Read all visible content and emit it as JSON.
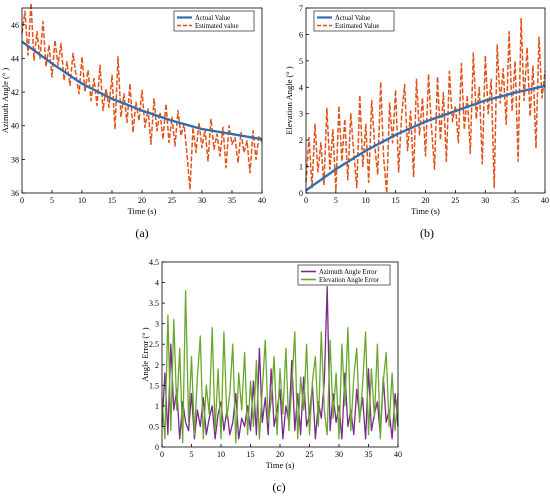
{
  "colors": {
    "actual": "#2f6fb0",
    "estimated": "#e0531b",
    "azimuth_error": "#7b2a8c",
    "elevation_error": "#6aa82d",
    "axis": "#000000"
  },
  "panel_labels": {
    "a": "(a)",
    "b": "(b)",
    "c": "(c)"
  },
  "chart_data": [
    {
      "type": "line",
      "id": "a",
      "title": "",
      "xlabel": "Time (s)",
      "ylabel": "Azimuth Angle (° )",
      "xlim": [
        0,
        40
      ],
      "ylim": [
        36,
        47
      ],
      "xticks": [
        "0",
        "5",
        "10",
        "15",
        "20",
        "25",
        "30",
        "35",
        "40"
      ],
      "yticks": [
        "36",
        "38",
        "40",
        "42",
        "44",
        "46"
      ],
      "legend": [
        "Actual Value",
        "Estimated value"
      ],
      "legend_position": "top-right",
      "grid": false,
      "series": [
        {
          "name": "Actual Value",
          "style": "solid",
          "x": [
            0,
            5,
            10,
            15,
            20,
            25,
            30,
            35,
            40
          ],
          "y": [
            45.0,
            43.7,
            42.5,
            41.6,
            40.9,
            40.3,
            39.8,
            39.5,
            39.2
          ]
        },
        {
          "name": "Estimated value",
          "style": "dashed",
          "x": [
            0,
            0.5,
            1,
            1.5,
            2,
            2.5,
            3,
            3.5,
            4,
            4.5,
            5,
            5.5,
            6,
            6.5,
            7,
            7.5,
            8,
            8.5,
            9,
            9.5,
            10,
            10.5,
            11,
            11.5,
            12,
            12.5,
            13,
            13.5,
            14,
            14.5,
            15,
            15.5,
            16,
            16.5,
            17,
            17.5,
            18,
            18.5,
            19,
            19.5,
            20,
            20.5,
            21,
            21.5,
            22,
            22.5,
            23,
            23.5,
            24,
            24.5,
            25,
            25.5,
            26,
            26.5,
            27,
            27.5,
            28,
            28.5,
            29,
            29.5,
            30,
            30.5,
            31,
            31.5,
            32,
            32.5,
            33,
            33.5,
            34,
            34.5,
            35,
            35.5,
            36,
            36.5,
            37,
            37.5,
            38,
            38.5,
            39,
            39.5,
            40
          ],
          "y": [
            45.5,
            46.8,
            44.2,
            47.3,
            43.9,
            45.6,
            44.0,
            46.2,
            43.5,
            44.8,
            42.9,
            45.1,
            43.6,
            44.9,
            42.7,
            43.8,
            42.4,
            44.3,
            43.0,
            41.9,
            44.1,
            42.0,
            43.3,
            41.5,
            42.8,
            41.2,
            43.6,
            40.9,
            42.2,
            41.1,
            43.0,
            39.8,
            44.1,
            40.5,
            41.9,
            40.2,
            42.5,
            39.6,
            41.4,
            40.3,
            42.1,
            39.9,
            41.0,
            38.9,
            41.6,
            39.7,
            40.8,
            39.2,
            41.3,
            39.0,
            40.5,
            38.8,
            40.9,
            39.4,
            40.1,
            38.3,
            36.2,
            39.9,
            38.4,
            40.2,
            38.7,
            39.8,
            37.9,
            40.4,
            38.6,
            39.5,
            38.2,
            39.9,
            37.5,
            40.0,
            38.9,
            39.3,
            37.8,
            39.6,
            38.4,
            39.1,
            37.2,
            39.7,
            38.0,
            39.4,
            39.0
          ]
        }
      ]
    },
    {
      "type": "line",
      "id": "b",
      "title": "",
      "xlabel": "Time (s)",
      "ylabel": "Elevation Angle (° )",
      "xlim": [
        0,
        40
      ],
      "ylim": [
        0,
        7
      ],
      "xticks": [
        "0",
        "5",
        "10",
        "15",
        "20",
        "25",
        "30",
        "35",
        "40"
      ],
      "yticks": [
        "0",
        "1",
        "2",
        "3",
        "4",
        "5",
        "6",
        "7"
      ],
      "legend": [
        "Actual Value",
        "Estimated Value"
      ],
      "legend_position": "top-left",
      "grid": false,
      "series": [
        {
          "name": "Actual Value",
          "style": "solid",
          "x": [
            0,
            5,
            10,
            15,
            20,
            25,
            30,
            35,
            40
          ],
          "y": [
            0.1,
            0.9,
            1.6,
            2.2,
            2.7,
            3.1,
            3.5,
            3.8,
            4.05
          ]
        },
        {
          "name": "Estimated Value",
          "style": "dashed",
          "x": [
            0,
            0.5,
            1,
            1.5,
            2,
            2.5,
            3,
            3.5,
            4,
            4.5,
            5,
            5.5,
            6,
            6.5,
            7,
            7.5,
            8,
            8.5,
            9,
            9.5,
            10,
            10.5,
            11,
            11.5,
            12,
            12.5,
            13,
            13.5,
            14,
            14.5,
            15,
            15.5,
            16,
            16.5,
            17,
            17.5,
            18,
            18.5,
            19,
            19.5,
            20,
            20.5,
            21,
            21.5,
            22,
            22.5,
            23,
            23.5,
            24,
            24.5,
            25,
            25.5,
            26,
            26.5,
            27,
            27.5,
            28,
            28.5,
            29,
            29.5,
            30,
            30.5,
            31,
            31.5,
            32,
            32.5,
            33,
            33.5,
            34,
            34.5,
            35,
            35.5,
            36,
            36.5,
            37,
            37.5,
            38,
            38.5,
            39,
            39.5,
            40
          ],
          "y": [
            0.4,
            2.1,
            0.2,
            2.6,
            0.8,
            1.9,
            0.3,
            3.2,
            0.9,
            2.4,
            0.1,
            3.3,
            1.2,
            2.8,
            0.5,
            3.0,
            1.5,
            0.2,
            3.7,
            1.0,
            2.6,
            0.4,
            3.5,
            1.8,
            0.7,
            4.2,
            1.3,
            0.0,
            3.4,
            1.9,
            3.9,
            0.8,
            2.9,
            4.1,
            1.6,
            3.1,
            0.6,
            4.3,
            2.2,
            3.6,
            1.4,
            4.5,
            2.5,
            0.9,
            4.4,
            2.0,
            3.8,
            1.2,
            4.6,
            2.7,
            3.3,
            1.9,
            4.9,
            2.4,
            3.7,
            1.5,
            5.3,
            2.8,
            4.0,
            1.1,
            5.2,
            3.0,
            4.3,
            0.2,
            5.6,
            3.4,
            4.7,
            2.6,
            6.1,
            3.1,
            5.0,
            1.2,
            6.6,
            3.5,
            5.5,
            2.9,
            4.8,
            1.7,
            5.9,
            3.6,
            4.6
          ]
        }
      ]
    },
    {
      "type": "line",
      "id": "c",
      "title": "",
      "xlabel": "Time (s)",
      "ylabel": "Angle Error (° )",
      "xlim": [
        0,
        40
      ],
      "ylim": [
        0,
        4.5
      ],
      "xticks": [
        "0",
        "5",
        "10",
        "15",
        "20",
        "25",
        "30",
        "35",
        "40"
      ],
      "yticks": [
        "0",
        "0.5",
        "1",
        "1.5",
        "2",
        "2.5",
        "3",
        "3.5",
        "4",
        "4.5"
      ],
      "legend": [
        "Azimuth Angle Error",
        "Elevation Angle Error"
      ],
      "legend_position": "top-right",
      "grid": false,
      "series": [
        {
          "name": "Azimuth Angle Error",
          "style": "solid",
          "x": [
            0,
            0.5,
            1,
            1.5,
            2,
            2.5,
            3,
            3.5,
            4,
            4.5,
            5,
            5.5,
            6,
            6.5,
            7,
            7.5,
            8,
            8.5,
            9,
            9.5,
            10,
            10.5,
            11,
            11.5,
            12,
            12.5,
            13,
            13.5,
            14,
            14.5,
            15,
            15.5,
            16,
            16.5,
            17,
            17.5,
            18,
            18.5,
            19,
            19.5,
            20,
            20.5,
            21,
            21.5,
            22,
            22.5,
            23,
            23.5,
            24,
            24.5,
            25,
            25.5,
            26,
            26.5,
            27,
            27.5,
            28,
            28.5,
            29,
            29.5,
            30,
            30.5,
            31,
            31.5,
            32,
            32.5,
            33,
            33.5,
            34,
            34.5,
            35,
            35.5,
            36,
            36.5,
            37,
            37.5,
            38,
            38.5,
            39,
            39.5,
            40
          ],
          "y": [
            0.5,
            1.8,
            0.3,
            2.5,
            0.9,
            1.4,
            0.2,
            1.1,
            0.6,
            0.4,
            1.3,
            0.2,
            0.9,
            0.5,
            1.2,
            0.3,
            0.7,
            1.0,
            0.2,
            0.8,
            1.1,
            0.4,
            0.9,
            0.3,
            0.6,
            1.3,
            0.2,
            0.7,
            0.5,
            1.0,
            0.4,
            1.6,
            0.3,
            2.4,
            0.6,
            1.2,
            0.3,
            1.9,
            0.5,
            0.9,
            1.4,
            0.2,
            1.0,
            0.6,
            2.1,
            0.4,
            1.3,
            0.3,
            1.7,
            0.5,
            0.8,
            1.5,
            0.2,
            1.1,
            0.7,
            1.6,
            3.9,
            0.4,
            1.3,
            0.6,
            1.0,
            0.2,
            1.8,
            0.5,
            0.9,
            0.3,
            1.4,
            0.7,
            1.2,
            0.2,
            1.9,
            0.4,
            0.8,
            1.1,
            0.3,
            1.7,
            0.6,
            0.9,
            0.2,
            1.3,
            0.5
          ]
        },
        {
          "name": "Elevation Angle Error",
          "style": "solid",
          "x": [
            0,
            0.5,
            1,
            1.5,
            2,
            2.5,
            3,
            3.5,
            4,
            4.5,
            5,
            5.5,
            6,
            6.5,
            7,
            7.5,
            8,
            8.5,
            9,
            9.5,
            10,
            10.5,
            11,
            11.5,
            12,
            12.5,
            13,
            13.5,
            14,
            14.5,
            15,
            15.5,
            16,
            16.5,
            17,
            17.5,
            18,
            18.5,
            19,
            19.5,
            20,
            20.5,
            21,
            21.5,
            22,
            22.5,
            23,
            23.5,
            24,
            24.5,
            25,
            25.5,
            26,
            26.5,
            27,
            27.5,
            28,
            28.5,
            29,
            29.5,
            30,
            30.5,
            31,
            31.5,
            32,
            32.5,
            33,
            33.5,
            34,
            34.5,
            35,
            35.5,
            36,
            36.5,
            37,
            37.5,
            38,
            38.5,
            39,
            39.5,
            40
          ],
          "y": [
            1.2,
            0.2,
            3.2,
            0.4,
            3.1,
            0.9,
            2.4,
            0.1,
            3.8,
            0.6,
            2.2,
            0.3,
            1.7,
            2.7,
            0.2,
            1.5,
            0.8,
            2.9,
            0.4,
            1.9,
            0.2,
            2.8,
            0.7,
            1.3,
            2.5,
            0.1,
            1.8,
            0.9,
            2.3,
            0.3,
            1.6,
            0.5,
            2.1,
            0.2,
            1.4,
            2.6,
            0.6,
            1.1,
            2.2,
            0.3,
            1.9,
            0.8,
            2.4,
            0.4,
            1.5,
            2.8,
            0.2,
            1.7,
            0.9,
            2.5,
            0.3,
            1.6,
            2.2,
            0.5,
            2.8,
            0.9,
            0.3,
            2.6,
            0.7,
            1.8,
            0.2,
            2.5,
            1.0,
            2.9,
            0.4,
            1.7,
            2.4,
            0.6,
            1.5,
            2.8,
            0.3,
            1.9,
            0.7,
            2.5,
            0.2,
            1.6,
            2.3,
            0.5,
            1.8,
            0.4,
            1.3
          ]
        }
      ]
    }
  ]
}
